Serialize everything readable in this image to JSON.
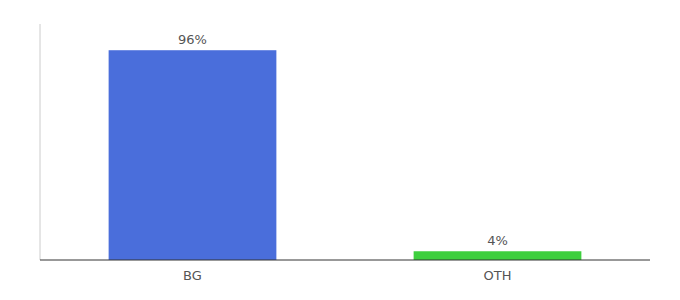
{
  "chart_data": {
    "type": "bar",
    "categories": [
      "BG",
      "OTH"
    ],
    "values": [
      96,
      4
    ],
    "value_labels": [
      "96%",
      "4%"
    ],
    "colors": [
      "#4a6edb",
      "#3ecf3e"
    ],
    "ylim": [
      0,
      108
    ],
    "grid": false,
    "data_labels": true,
    "tick_labels": "x"
  }
}
